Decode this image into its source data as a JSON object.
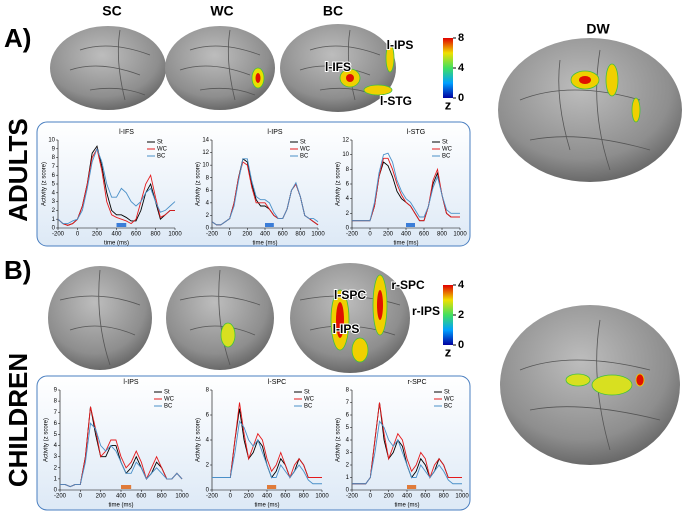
{
  "columns": [
    "SC",
    "WC",
    "BC",
    "DW"
  ],
  "panels": [
    {
      "letter": "A)",
      "group": "ADULTS",
      "regions": [
        "l-IFS",
        "l-IPS",
        "l-STG"
      ],
      "colorbar": {
        "ticks": [
          0,
          4,
          8
        ],
        "label": "z"
      }
    },
    {
      "letter": "B)",
      "group": "CHILDREN",
      "regions": [
        "l-SPC",
        "r-SPC",
        "r-IPS",
        "l-IPS"
      ],
      "colorbar": {
        "ticks": [
          0,
          2,
          4
        ],
        "label": "z"
      }
    }
  ],
  "chart_data": [
    {
      "type": "line",
      "title": "l-IFS",
      "xlabel": "time (ms)",
      "ylabel": "Activity (z score)",
      "x": [
        -200,
        -150,
        -100,
        -50,
        0,
        50,
        100,
        150,
        200,
        250,
        300,
        350,
        400,
        450,
        500,
        550,
        600,
        650,
        700,
        750,
        800,
        850,
        900,
        950,
        1000
      ],
      "xlim": [
        -200,
        1000
      ],
      "xticks": [
        -200,
        0,
        200,
        400,
        600,
        800,
        1000
      ],
      "ylim": [
        0,
        10
      ],
      "yticks": [
        0,
        1,
        2,
        3,
        4,
        5,
        6,
        7,
        8,
        9,
        10
      ],
      "highlight": [
        400,
        500
      ],
      "highlight_color": "#3b7dd8",
      "series": [
        {
          "name": "St",
          "color": "#000000",
          "values": [
            1,
            0.5,
            0.3,
            0.5,
            1,
            2.5,
            5,
            8.5,
            9.3,
            7,
            4,
            2,
            1.5,
            1.5,
            1.2,
            0.8,
            0.8,
            2,
            4,
            5,
            3,
            1,
            1.5,
            2,
            2
          ]
        },
        {
          "name": "WC",
          "color": "#e41a1c",
          "values": [
            1,
            0.5,
            0.3,
            0.5,
            1,
            2.5,
            5,
            8,
            9,
            6.5,
            3,
            1.5,
            1.2,
            1,
            0.8,
            0.5,
            1,
            3,
            5,
            6,
            3.5,
            1.2,
            1.5,
            2,
            2
          ]
        },
        {
          "name": "BC",
          "color": "#4a90c8",
          "values": [
            1,
            0.5,
            0.5,
            0.8,
            1,
            2,
            4.5,
            7.5,
            9,
            7.5,
            5,
            3.5,
            3.5,
            4.5,
            4,
            3,
            2.5,
            3,
            4,
            4.5,
            3,
            1.8,
            2,
            2.5,
            3
          ]
        }
      ]
    },
    {
      "type": "line",
      "title": "l-IPS",
      "xlabel": "time (ms)",
      "ylabel": "Activity (z score)",
      "x": [
        -200,
        -150,
        -100,
        -50,
        0,
        50,
        100,
        150,
        200,
        250,
        300,
        350,
        400,
        450,
        500,
        550,
        600,
        650,
        700,
        750,
        800,
        850,
        900,
        950,
        1000
      ],
      "xlim": [
        -200,
        1000
      ],
      "xticks": [
        -200,
        0,
        200,
        400,
        600,
        800,
        1000
      ],
      "ylim": [
        0,
        14
      ],
      "yticks": [
        0,
        2,
        4,
        6,
        8,
        10,
        12,
        14
      ],
      "highlight": [
        400,
        500
      ],
      "highlight_color": "#3b7dd8",
      "series": [
        {
          "name": "St",
          "color": "#000000",
          "values": [
            1,
            0.5,
            0.5,
            1,
            1.5,
            4,
            8,
            11,
            10.5,
            7,
            4.5,
            3.5,
            3.5,
            3,
            2,
            1.5,
            1.5,
            3,
            6,
            7,
            5,
            2,
            1.5,
            1,
            0.5
          ]
        },
        {
          "name": "WC",
          "color": "#e41a1c",
          "values": [
            1,
            0.5,
            0.5,
            1,
            1.5,
            4,
            8,
            10.5,
            10,
            6.5,
            4,
            4,
            4,
            3,
            2,
            1.5,
            1.5,
            3,
            6,
            7,
            5,
            2,
            1.5,
            1,
            0.5
          ]
        },
        {
          "name": "BC",
          "color": "#4a90c8",
          "values": [
            1,
            0.5,
            0.5,
            1,
            1.5,
            3.5,
            7.5,
            11,
            11,
            7.5,
            5,
            4.5,
            4.5,
            4,
            2.5,
            1.5,
            1.5,
            3,
            6,
            7.2,
            5,
            2,
            1.5,
            1.5,
            1
          ]
        }
      ]
    },
    {
      "type": "line",
      "title": "l-STG",
      "xlabel": "time (ms)",
      "ylabel": "Activity (z score)",
      "x": [
        -200,
        -150,
        -100,
        -50,
        0,
        50,
        100,
        150,
        200,
        250,
        300,
        350,
        400,
        450,
        500,
        550,
        600,
        650,
        700,
        750,
        800,
        850,
        900,
        950,
        1000
      ],
      "xlim": [
        -200,
        1000
      ],
      "xticks": [
        -200,
        0,
        200,
        400,
        600,
        800,
        1000
      ],
      "ylim": [
        0,
        12
      ],
      "yticks": [
        0,
        2,
        4,
        6,
        8,
        10,
        12
      ],
      "highlight": [
        400,
        500
      ],
      "highlight_color": "#3b7dd8",
      "series": [
        {
          "name": "St",
          "color": "#000000",
          "values": [
            1,
            1,
            1,
            1,
            1,
            3,
            7,
            9,
            8.5,
            7,
            5,
            4,
            3.5,
            3,
            2,
            1,
            1,
            3,
            6,
            7.5,
            4.5,
            2,
            1.5,
            1.5,
            1.5
          ]
        },
        {
          "name": "WC",
          "color": "#e41a1c",
          "values": [
            1,
            1,
            1,
            1,
            1,
            3,
            7,
            9.5,
            9.5,
            8,
            6,
            4.5,
            3.5,
            3,
            2,
            1,
            1,
            3,
            6.5,
            8,
            4.5,
            2,
            1.5,
            1.5,
            1.5
          ]
        },
        {
          "name": "BC",
          "color": "#4a90c8",
          "values": [
            1,
            1,
            1,
            1,
            1,
            3.5,
            7.5,
            10,
            10.2,
            9,
            6.5,
            5,
            4,
            3.5,
            2.5,
            1.5,
            1.5,
            3,
            5.5,
            7,
            4.5,
            2.5,
            2,
            2,
            2
          ]
        }
      ]
    },
    {
      "type": "line",
      "title": "l-IPS",
      "xlabel": "time (ms)",
      "ylabel": "Activity (z score)",
      "x": [
        -200,
        -150,
        -100,
        -50,
        0,
        50,
        100,
        150,
        200,
        250,
        300,
        350,
        400,
        450,
        500,
        550,
        600,
        650,
        700,
        750,
        800,
        850,
        900,
        950,
        1000
      ],
      "xlim": [
        -200,
        1000
      ],
      "xticks": [
        -200,
        0,
        200,
        400,
        600,
        800,
        1000
      ],
      "ylim": [
        0,
        9
      ],
      "yticks": [
        0,
        1,
        2,
        3,
        4,
        5,
        6,
        7,
        8,
        9
      ],
      "highlight": [
        400,
        500
      ],
      "highlight_color": "#e07b39",
      "series": [
        {
          "name": "St",
          "color": "#000000",
          "values": [
            0.5,
            0.5,
            0.3,
            0.5,
            0.5,
            3,
            7.5,
            5,
            3,
            3,
            4,
            4,
            2.5,
            1.5,
            2,
            3,
            2,
            1,
            1.5,
            2.5,
            2,
            1,
            1,
            1.5,
            1
          ]
        },
        {
          "name": "WC",
          "color": "#e41a1c",
          "values": [
            0.5,
            0.5,
            0.3,
            0.5,
            0.5,
            3,
            7.5,
            5.5,
            3,
            3.5,
            4.5,
            4.5,
            3,
            2,
            2.5,
            3.5,
            2.5,
            1,
            2,
            3,
            2,
            1,
            1,
            1.5,
            1
          ]
        },
        {
          "name": "BC",
          "color": "#4a90c8",
          "values": [
            0.5,
            0.5,
            0.3,
            0.5,
            0.5,
            2.5,
            6,
            5.5,
            4,
            3.5,
            4,
            3.5,
            2.5,
            1.5,
            1.5,
            2.5,
            2,
            1,
            1.5,
            2,
            1.5,
            1,
            1,
            1.5,
            1
          ]
        }
      ]
    },
    {
      "type": "line",
      "title": "l-SPC",
      "xlabel": "time (ms)",
      "ylabel": "Activity (z score)",
      "x": [
        -200,
        -150,
        -100,
        -50,
        0,
        50,
        100,
        150,
        200,
        250,
        300,
        350,
        400,
        450,
        500,
        550,
        600,
        650,
        700,
        750,
        800,
        850,
        900,
        950,
        1000
      ],
      "xlim": [
        -200,
        1000
      ],
      "xticks": [
        -200,
        0,
        200,
        400,
        600,
        800,
        1000
      ],
      "ylim": [
        0,
        8
      ],
      "yticks": [
        0,
        2,
        4,
        6,
        8
      ],
      "highlight": [
        400,
        500
      ],
      "highlight_color": "#e07b39",
      "series": [
        {
          "name": "St",
          "color": "#000000",
          "values": [
            1,
            1,
            1,
            1,
            1,
            4,
            6.5,
            4,
            2.5,
            3,
            4,
            3.5,
            2,
            1,
            1.5,
            2.5,
            2,
            1,
            1.5,
            2.5,
            2,
            1,
            1,
            1,
            1
          ]
        },
        {
          "name": "WC",
          "color": "#e41a1c",
          "values": [
            1,
            1,
            1,
            1,
            1,
            4,
            7,
            4.5,
            2.5,
            3.5,
            4.5,
            4,
            2.5,
            1.5,
            2,
            3,
            2,
            1,
            2,
            2.5,
            2,
            1,
            1,
            1,
            1
          ]
        },
        {
          "name": "BC",
          "color": "#4a90c8",
          "values": [
            1,
            1,
            1,
            1,
            1,
            3,
            5.5,
            5,
            4,
            3.5,
            4,
            3,
            2,
            1,
            1,
            2,
            1.5,
            1,
            1.5,
            2,
            1.5,
            0.8,
            0.5,
            0.5,
            0.5
          ]
        }
      ]
    },
    {
      "type": "line",
      "title": "r-SPC",
      "xlabel": "time (ms)",
      "ylabel": "Activity (z score)",
      "x": [
        -200,
        -150,
        -100,
        -50,
        0,
        50,
        100,
        150,
        200,
        250,
        300,
        350,
        400,
        450,
        500,
        550,
        600,
        650,
        700,
        750,
        800,
        850,
        900,
        950,
        1000
      ],
      "xlim": [
        -200,
        1000
      ],
      "xticks": [
        -200,
        0,
        200,
        400,
        600,
        800,
        1000
      ],
      "ylim": [
        0,
        8
      ],
      "yticks": [
        0,
        1,
        2,
        3,
        4,
        5,
        6,
        7,
        8
      ],
      "highlight": [
        400,
        500
      ],
      "highlight_color": "#e07b39",
      "series": [
        {
          "name": "St",
          "color": "#000000",
          "values": [
            0.5,
            0.5,
            0.5,
            0.5,
            1,
            4,
            7,
            4,
            2.5,
            3,
            4,
            3.5,
            2,
            1,
            1.5,
            2.5,
            2,
            1,
            1.5,
            2.5,
            2,
            1,
            1,
            1,
            1
          ]
        },
        {
          "name": "WC",
          "color": "#e41a1c",
          "values": [
            0.5,
            0.5,
            0.5,
            0.5,
            1,
            4,
            7,
            4.5,
            2.5,
            3.5,
            4.5,
            4,
            2.5,
            1.5,
            2,
            3,
            2.5,
            1,
            2,
            2.5,
            2,
            1,
            1,
            1,
            1
          ]
        },
        {
          "name": "BC",
          "color": "#4a90c8",
          "values": [
            0.5,
            0.5,
            0.5,
            0.5,
            1,
            3,
            5.5,
            5,
            4,
            3.5,
            4,
            3,
            2,
            1,
            1,
            2,
            1.5,
            1,
            1.5,
            2,
            1.5,
            0.8,
            0.5,
            0.5,
            0.5
          ]
        }
      ]
    }
  ]
}
